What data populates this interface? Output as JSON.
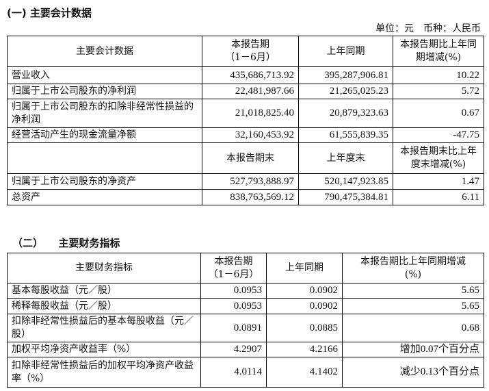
{
  "section1": {
    "title": "(一) 主要会计数据",
    "unit": "单位：元　币种：人民币",
    "header": [
      "主要会计数据",
      "本报告期\n（1－6月）",
      "上年同期",
      "本报告期比上年同期增减(%)"
    ],
    "rows": [
      [
        "营业收入",
        "435,686,713.92",
        "395,287,906.81",
        "10.22"
      ],
      [
        "归属于上市公司股东的净利润",
        "22,481,987.66",
        "21,265,025.23",
        "5.72"
      ],
      [
        "归属于上市公司股东的扣除非经常性损益的净利润",
        "21,018,825.40",
        "20,879,323.63",
        "0.67"
      ],
      [
        "经营活动产生的现金流量净额",
        "32,160,453.92",
        "61,555,839.35",
        "-47.75"
      ]
    ],
    "header2": [
      "",
      "本报告期末",
      "上年度末",
      "本报告期末比上年度末增减(%)"
    ],
    "rows2": [
      [
        "归属于上市公司股东的净资产",
        "527,793,888.97",
        "520,147,923.85",
        "1.47"
      ],
      [
        "总资产",
        "838,763,569.12",
        "790,475,384.81",
        "6.11"
      ]
    ]
  },
  "section2": {
    "title": "（二）　　主要财务指标",
    "header": [
      "主要财务指标",
      "本报告期\n（1－6月）",
      "上年同期",
      "本报告期比上年同期增减\n(%)"
    ],
    "rows": [
      [
        "基本每股收益（元／股）",
        "0.0953",
        "0.0902",
        "5.65"
      ],
      [
        "稀释每股收益（元／股）",
        "0.0953",
        "0.0902",
        "5.65"
      ],
      [
        "扣除非经常性损益后的基本每股收益（元／股）",
        "0.0891",
        "0.0885",
        "0.68"
      ],
      [
        "加权平均净资产收益率（%）",
        "4.2907",
        "4.2166",
        "增加0.07个百分点"
      ],
      [
        "扣除非经常性损益后的加权平均净资产收益率（%）",
        "4.0114",
        "4.1402",
        "减少0.13个百分点"
      ]
    ]
  }
}
